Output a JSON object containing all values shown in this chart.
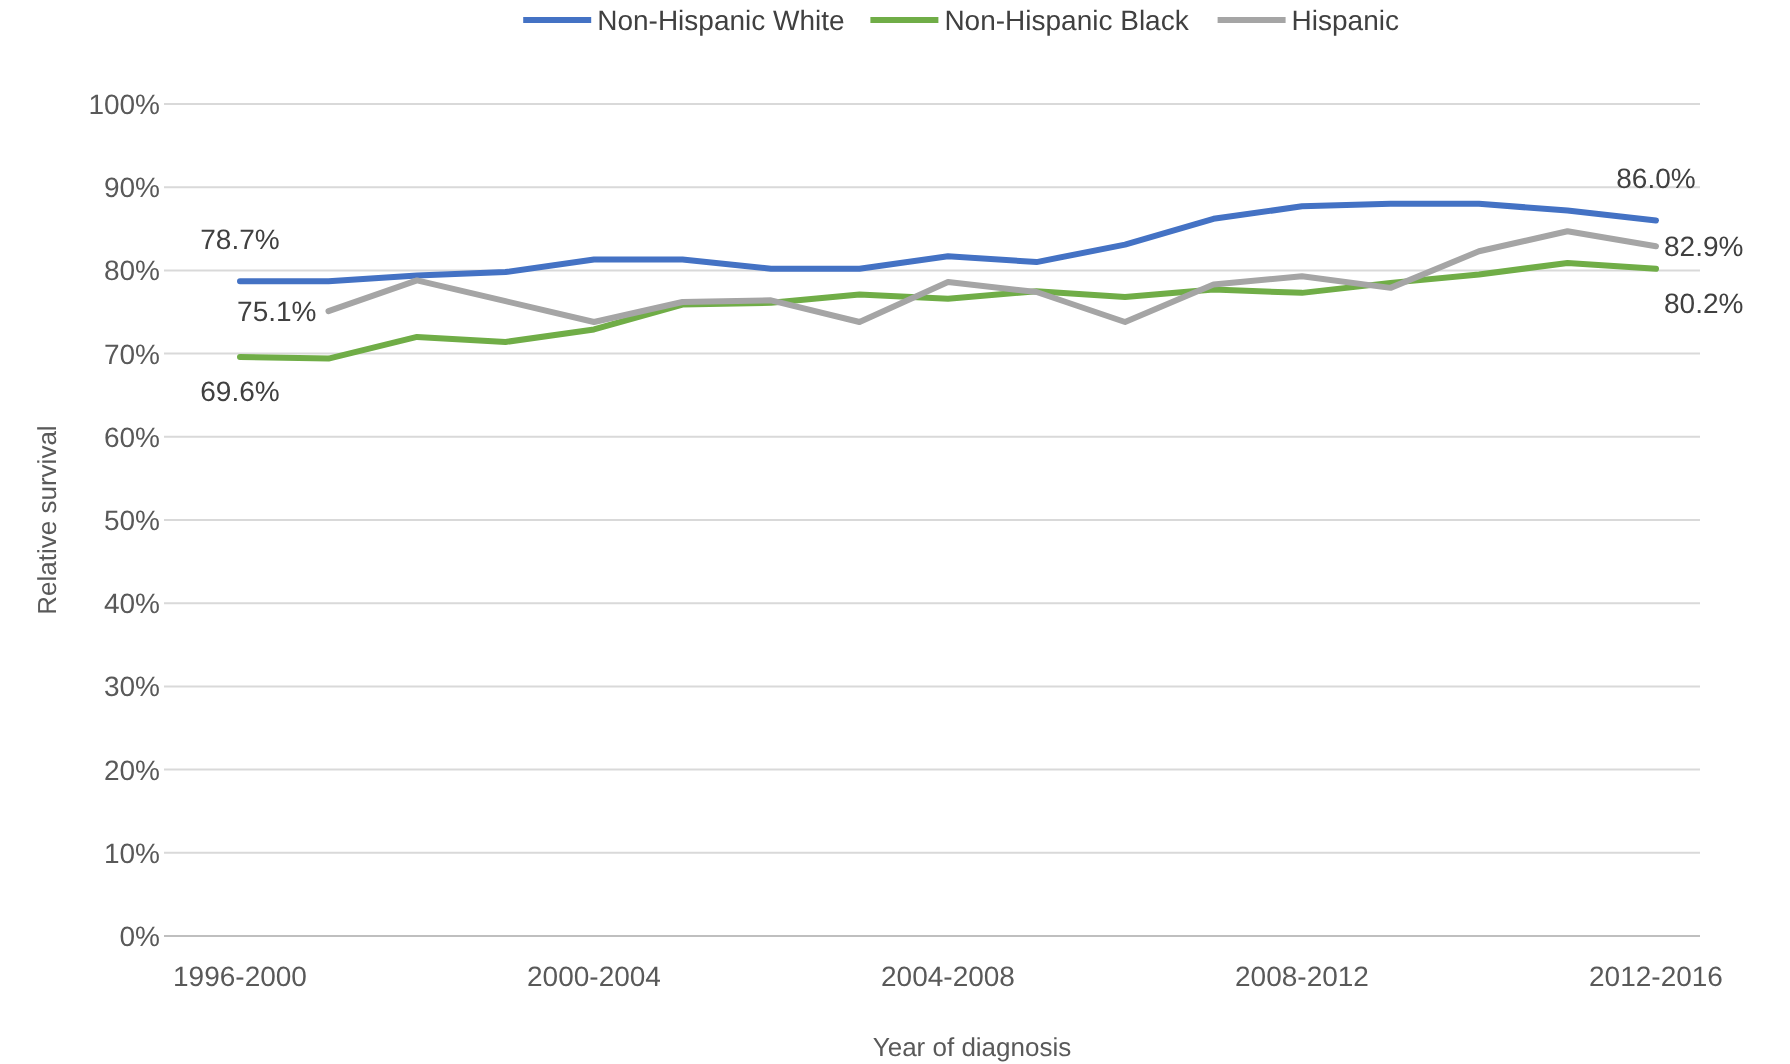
{
  "chart_data": {
    "type": "line",
    "xlabel": "Year of diagnosis",
    "ylabel": "Relative survival",
    "categories": [
      "1996-2000",
      null,
      null,
      null,
      "2000-2004",
      null,
      null,
      null,
      "2004-2008",
      null,
      null,
      null,
      "2008-2012",
      null,
      null,
      null,
      "2012-2016"
    ],
    "series": [
      {
        "name": "Non-Hispanic White",
        "color": "#4472c4",
        "values": [
          78.7,
          78.7,
          79.4,
          79.8,
          81.3,
          81.3,
          80.2,
          80.2,
          81.7,
          81.0,
          83.1,
          86.2,
          87.7,
          88.0,
          88.0,
          87.2,
          86.0
        ],
        "value_labels": [
          "78.7%",
          null,
          null,
          null,
          null,
          null,
          null,
          null,
          null,
          null,
          null,
          null,
          null,
          null,
          null,
          null,
          "86.0%"
        ]
      },
      {
        "name": "Non-Hispanic Black",
        "color": "#70ad47",
        "values": [
          69.6,
          69.4,
          72.0,
          71.4,
          72.9,
          75.9,
          76.1,
          77.1,
          76.6,
          77.5,
          76.8,
          77.7,
          77.3,
          78.5,
          79.5,
          80.9,
          80.2
        ],
        "value_labels": [
          "69.6%",
          null,
          null,
          null,
          null,
          null,
          null,
          null,
          null,
          null,
          null,
          null,
          null,
          null,
          null,
          null,
          "80.2%"
        ]
      },
      {
        "name": "Hispanic",
        "color": "#a5a5a5",
        "values": [
          null,
          75.1,
          78.8,
          76.3,
          73.8,
          76.2,
          76.4,
          73.8,
          78.6,
          77.4,
          73.8,
          78.3,
          79.3,
          77.9,
          82.3,
          84.7,
          82.9
        ],
        "value_labels": [
          null,
          "75.1%",
          null,
          null,
          null,
          null,
          null,
          null,
          null,
          null,
          null,
          null,
          null,
          null,
          null,
          null,
          "82.9%"
        ]
      }
    ],
    "ylim": [
      0,
      100
    ],
    "yticks": [
      {
        "value": 0,
        "label": "0%"
      },
      {
        "value": 10,
        "label": "10%"
      },
      {
        "value": 20,
        "label": "20%"
      },
      {
        "value": 30,
        "label": "30%"
      },
      {
        "value": 40,
        "label": "40%"
      },
      {
        "value": 50,
        "label": "50%"
      },
      {
        "value": 60,
        "label": "60%"
      },
      {
        "value": 70,
        "label": "70%"
      },
      {
        "value": 80,
        "label": "80%"
      },
      {
        "value": 90,
        "label": "90%"
      },
      {
        "value": 100,
        "label": "100%"
      }
    ],
    "grid": "y",
    "legend": "top",
    "marker": "none",
    "line_style": "solid"
  }
}
